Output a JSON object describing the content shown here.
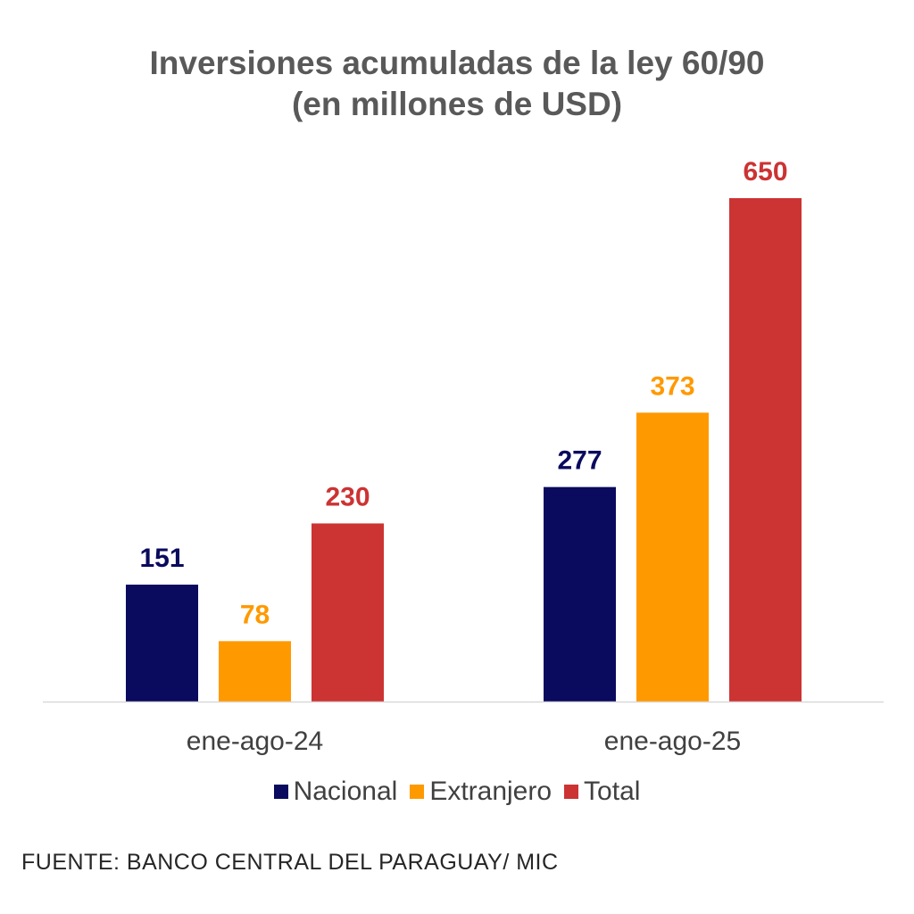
{
  "chart_data": {
    "type": "bar",
    "title": "Inversiones acumuladas de la ley 60/90",
    "subtitle": "(en millones de USD)",
    "categories": [
      "ene-ago-24",
      "ene-ago-25"
    ],
    "series": [
      {
        "name": "Nacional",
        "values": [
          151,
          277
        ],
        "color": "#0a0a5e"
      },
      {
        "name": "Extranjero",
        "values": [
          78,
          373
        ],
        "color": "#ff9900"
      },
      {
        "name": "Total",
        "values": [
          230,
          650
        ],
        "color": "#cc3333"
      }
    ],
    "ylim": [
      0,
      650
    ],
    "grid": false,
    "data_labels": true,
    "legend_position": "bottom",
    "source": "FUENTE: BANCO CENTRAL DEL PARAGUAY/ MIC"
  }
}
